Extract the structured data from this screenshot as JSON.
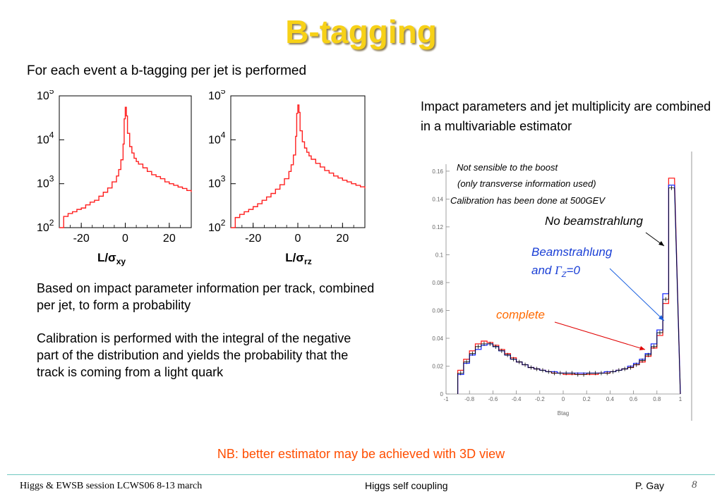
{
  "slide": {
    "title": "B-tagging",
    "subtitle": "For each event a b-tagging per jet is performed",
    "paragraph1": "Based on impact parameter information per track, combined per jet, to form a probability",
    "paragraph2": "Calibration is performed with the integral of the negative part of the distribution and yields the probability that the track is coming from a light quark",
    "right_text": "Impact parameters and jet multiplicity are combined in a multivariable estimator",
    "nb": "NB: better estimator may be achieved with 3D view",
    "footer_left": "Higgs & EWSB session LCWS06 8-13 march",
    "footer_center": "Higgs self coupling",
    "footer_author": "P.  Gay",
    "footer_page": "8"
  },
  "colors": {
    "title": "#f7d117",
    "hist_red": "#ff2020",
    "hist_blue": "#2030ff",
    "nb": "#ff4d00",
    "annot_blue": "#1a3fd6",
    "annot_orange": "#ff6a00"
  },
  "chart_data": [
    {
      "type": "line",
      "xlabel_main": "L/σ",
      "xlabel_sub": "xy",
      "x_ticks": [
        "-20",
        "0",
        "20"
      ],
      "x_tick_values": [
        -20,
        0,
        20
      ],
      "xlim": [
        -30,
        30
      ],
      "y_scale": "log",
      "ylim": [
        100,
        100000
      ],
      "y_ticks": [
        {
          "base": "10",
          "exp": "5",
          "value": 100000
        },
        {
          "base": "10",
          "exp": "4",
          "value": 10000
        },
        {
          "base": "10",
          "exp": "3",
          "value": 1000
        },
        {
          "base": "10",
          "exp": "2",
          "value": 100
        }
      ],
      "series": [
        {
          "x": [
            -30,
            -28,
            -26,
            -24,
            -22,
            -20,
            -18,
            -16,
            -14,
            -12,
            -10,
            -8,
            -6,
            -4,
            -3,
            -2,
            -1,
            -0.5,
            0,
            0.5,
            1,
            2,
            3,
            4,
            5,
            6,
            8,
            10,
            12,
            14,
            16,
            18,
            20,
            22,
            24,
            26,
            28,
            30
          ],
          "y": [
            100,
            180,
            210,
            230,
            260,
            280,
            330,
            380,
            420,
            520,
            640,
            800,
            1100,
            1500,
            2100,
            3500,
            8000,
            30000,
            55000,
            35000,
            14000,
            7000,
            5000,
            3800,
            3200,
            2800,
            2300,
            1900,
            1600,
            1450,
            1300,
            1100,
            1000,
            920,
            840,
            780,
            700,
            650
          ]
        }
      ]
    },
    {
      "type": "line",
      "xlabel_main": "L/σ",
      "xlabel_sub": "rz",
      "x_ticks": [
        "-20",
        "0",
        "20"
      ],
      "x_tick_values": [
        -20,
        0,
        20
      ],
      "xlim": [
        -30,
        30
      ],
      "y_scale": "log",
      "ylim": [
        100,
        100000
      ],
      "y_ticks": [
        {
          "base": "10",
          "exp": "5",
          "value": 100000
        },
        {
          "base": "10",
          "exp": "4",
          "value": 10000
        },
        {
          "base": "10",
          "exp": "3",
          "value": 1000
        },
        {
          "base": "10",
          "exp": "2",
          "value": 100
        }
      ],
      "series": [
        {
          "x": [
            -30,
            -28,
            -26,
            -24,
            -22,
            -20,
            -18,
            -16,
            -14,
            -12,
            -10,
            -8,
            -6,
            -4,
            -3,
            -2,
            -1,
            -0.5,
            0,
            0.5,
            1,
            2,
            3,
            4,
            5,
            6,
            8,
            10,
            12,
            14,
            16,
            18,
            20,
            22,
            24,
            26,
            28,
            30
          ],
          "y": [
            100,
            170,
            200,
            230,
            260,
            300,
            350,
            420,
            500,
            600,
            750,
            950,
            1300,
            1900,
            2700,
            4500,
            12000,
            40000,
            62000,
            42000,
            16000,
            9000,
            6500,
            5200,
            4300,
            3600,
            2900,
            2400,
            2000,
            1750,
            1500,
            1350,
            1200,
            1100,
            1000,
            920,
            850,
            780
          ]
        }
      ]
    },
    {
      "type": "line",
      "xlabel": "Btag",
      "xlim": [
        -1,
        1
      ],
      "ylim": [
        0,
        0.165
      ],
      "x_ticks": [
        "-1",
        "-0.8",
        "-0.6",
        "-0.4",
        "-0.2",
        "0",
        "0.2",
        "0.4",
        "0.6",
        "0.8",
        "1"
      ],
      "x_tick_values": [
        -1,
        -0.8,
        -0.6,
        -0.4,
        -0.2,
        0,
        0.2,
        0.4,
        0.6,
        0.8,
        1
      ],
      "y_ticks": [
        "0",
        "0.02",
        "0.04",
        "0.06",
        "0.08",
        "0.1",
        "0.12",
        "0.14",
        "0.16"
      ],
      "y_tick_values": [
        0,
        0.02,
        0.04,
        0.06,
        0.08,
        0.1,
        0.12,
        0.14,
        0.16
      ],
      "bin_edges": [
        -0.9,
        -0.85,
        -0.8,
        -0.75,
        -0.7,
        -0.65,
        -0.6,
        -0.55,
        -0.5,
        -0.45,
        -0.4,
        -0.35,
        -0.3,
        -0.25,
        -0.2,
        -0.15,
        -0.1,
        -0.05,
        0,
        0.05,
        0.1,
        0.15,
        0.2,
        0.25,
        0.3,
        0.35,
        0.4,
        0.45,
        0.5,
        0.55,
        0.6,
        0.65,
        0.7,
        0.75,
        0.8,
        0.85,
        0.9,
        0.95
      ],
      "series": [
        {
          "name": "complete",
          "color": "#ff2020",
          "values": [
            0.017,
            0.025,
            0.031,
            0.036,
            0.038,
            0.037,
            0.035,
            0.032,
            0.029,
            0.026,
            0.023,
            0.021,
            0.019,
            0.018,
            0.017,
            0.016,
            0.015,
            0.015,
            0.014,
            0.014,
            0.014,
            0.014,
            0.014,
            0.014,
            0.015,
            0.015,
            0.016,
            0.017,
            0.018,
            0.019,
            0.021,
            0.023,
            0.027,
            0.033,
            0.042,
            0.065,
            0.155
          ]
        },
        {
          "name": "Beamstrahlung",
          "color": "#2030ff",
          "values": [
            0.014,
            0.022,
            0.028,
            0.032,
            0.035,
            0.036,
            0.034,
            0.031,
            0.028,
            0.025,
            0.023,
            0.021,
            0.019,
            0.018,
            0.017,
            0.016,
            0.016,
            0.015,
            0.015,
            0.015,
            0.015,
            0.015,
            0.015,
            0.015,
            0.015,
            0.016,
            0.016,
            0.017,
            0.018,
            0.02,
            0.022,
            0.025,
            0.029,
            0.036,
            0.046,
            0.072,
            0.15
          ]
        },
        {
          "name": "No beamstrahlung",
          "color": "#000000",
          "values": [
            0.015,
            0.023,
            0.029,
            0.034,
            0.036,
            0.036,
            0.034,
            0.031,
            0.028,
            0.025,
            0.023,
            0.021,
            0.019,
            0.018,
            0.017,
            0.016,
            0.015,
            0.015,
            0.015,
            0.015,
            0.014,
            0.014,
            0.015,
            0.015,
            0.015,
            0.015,
            0.016,
            0.017,
            0.018,
            0.019,
            0.021,
            0.024,
            0.028,
            0.034,
            0.044,
            0.068,
            0.148
          ]
        }
      ],
      "annotations": {
        "note1": "Not sensible to the boost",
        "note2": "(only transverse information used)",
        "note3": "Calibration has been done at 500GEV",
        "no_beam": "No beamstrahlung",
        "beam_line1": "Beamstrahlung",
        "beam_and": "and",
        "beam_gamma": "Γ",
        "beam_sub": "Z",
        "beam_eq": "=0",
        "complete": "complete"
      }
    }
  ]
}
